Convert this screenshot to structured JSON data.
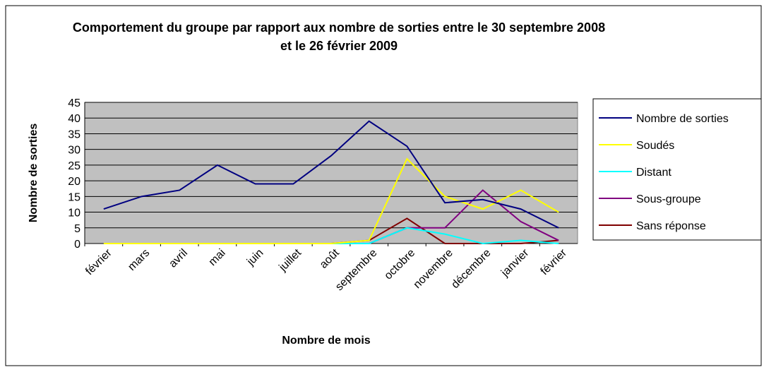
{
  "chart_data": {
    "type": "line",
    "title": "Comportement du groupe par rapport aux nombre de sorties entre le 30 septembre 2008 et le 26 février 2009",
    "xlabel": "Nombre de mois",
    "ylabel": "Nombre de sorties",
    "categories": [
      "février",
      "mars",
      "avril",
      "mai",
      "juin",
      "juillet",
      "août",
      "septembre",
      "octobre",
      "novembre",
      "décembre",
      "janvier",
      "février"
    ],
    "series": [
      {
        "name": "Nombre de sorties",
        "color": "#000080",
        "values": [
          11,
          15,
          17,
          25,
          19,
          19,
          28,
          39,
          31,
          13,
          14,
          11,
          5
        ]
      },
      {
        "name": "Soudés",
        "color": "#ffff00",
        "values": [
          0,
          0,
          0,
          0,
          0,
          0,
          0,
          1,
          27,
          15,
          11,
          17,
          10
        ]
      },
      {
        "name": "Distant",
        "color": "#00ffff",
        "values": [
          0,
          0,
          0,
          0,
          0,
          0,
          0,
          0,
          5,
          3,
          0,
          1,
          0
        ]
      },
      {
        "name": "Sous-groupe",
        "color": "#800080",
        "values": [
          0,
          0,
          0,
          0,
          0,
          0,
          0,
          0,
          5,
          5,
          17,
          7,
          1
        ]
      },
      {
        "name": "Sans réponse",
        "color": "#800000",
        "values": [
          0,
          0,
          0,
          0,
          0,
          0,
          0,
          1,
          8,
          0,
          0,
          0,
          1
        ]
      }
    ],
    "ylim": [
      0,
      45
    ],
    "yticks": [
      0,
      5,
      10,
      15,
      20,
      25,
      30,
      35,
      40,
      45
    ],
    "grid": true,
    "legend": "right"
  }
}
